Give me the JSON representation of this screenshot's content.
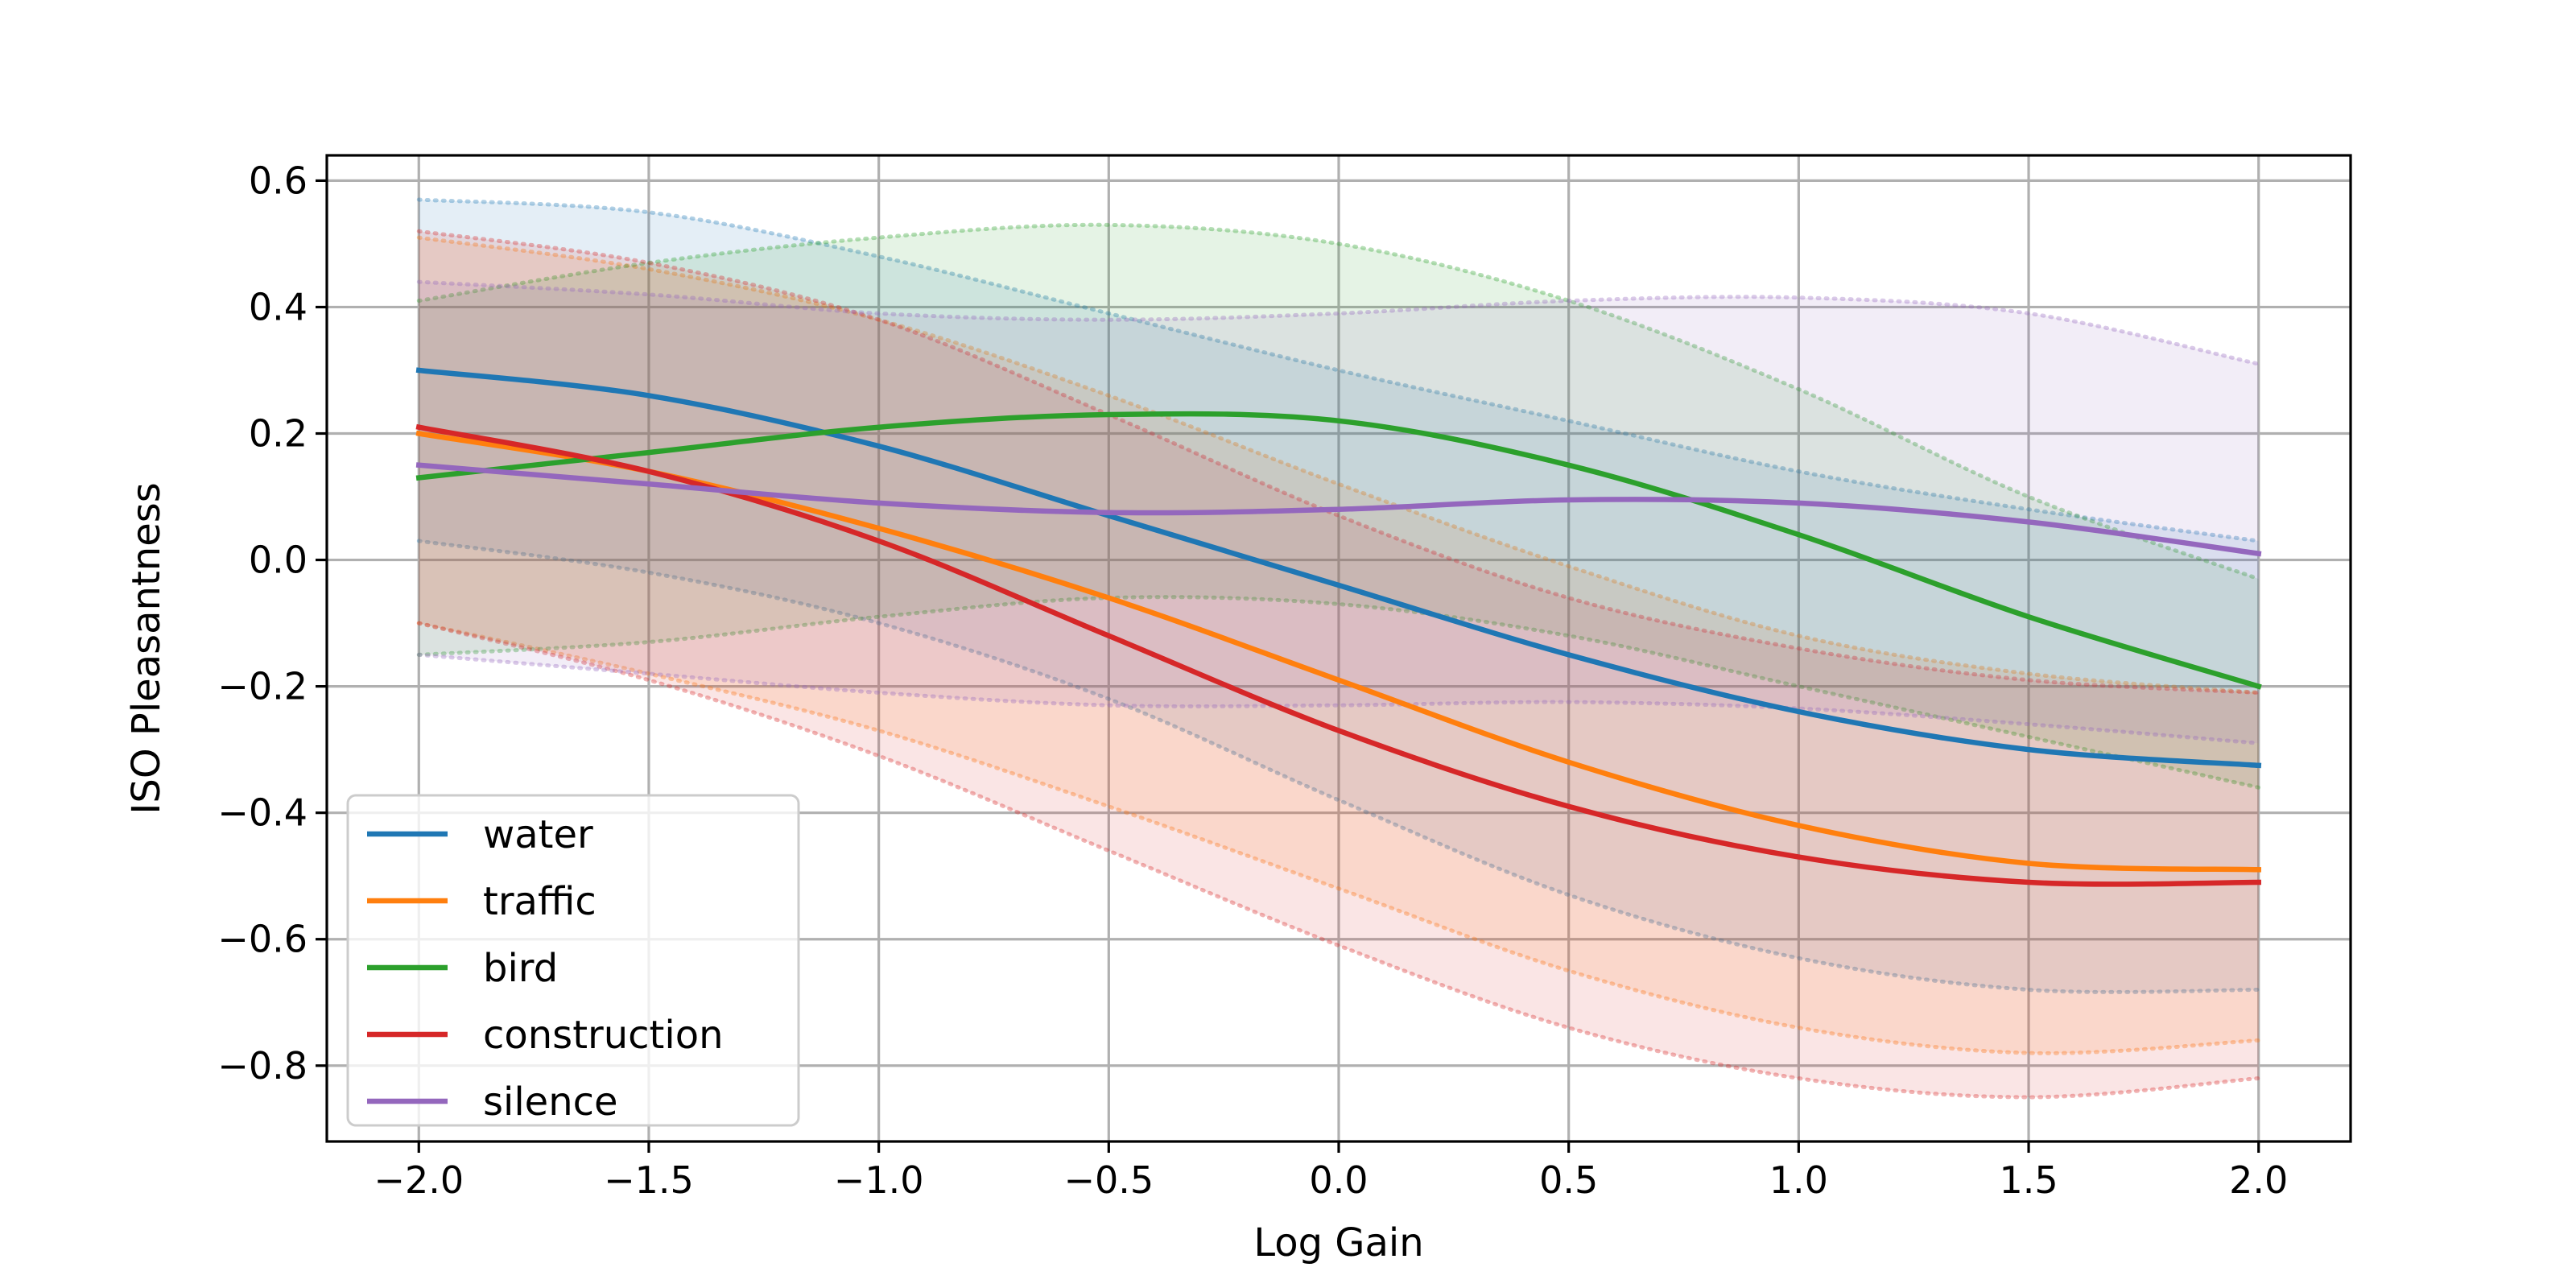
{
  "chart_data": {
    "type": "line",
    "title": "",
    "xlabel": "Log Gain",
    "ylabel": "ISO Pleasantness",
    "xlim": [
      -2.2,
      2.2
    ],
    "ylim": [
      -0.92,
      0.64
    ],
    "xticks": [
      -2.0,
      -1.5,
      -1.0,
      -0.5,
      0.0,
      0.5,
      1.0,
      1.5,
      2.0
    ],
    "xtick_labels": [
      "−2.0",
      "−1.5",
      "−1.0",
      "−0.5",
      "0.0",
      "0.5",
      "1.0",
      "1.5",
      "2.0"
    ],
    "yticks": [
      -0.8,
      -0.6,
      -0.4,
      -0.2,
      0.0,
      0.2,
      0.4,
      0.6
    ],
    "ytick_labels": [
      "−0.8",
      "−0.6",
      "−0.4",
      "−0.2",
      "0.0",
      "0.2",
      "0.4",
      "0.6"
    ],
    "grid": true,
    "legend_position": "lower-left",
    "x": [
      -2.0,
      -1.5,
      -1.0,
      -0.5,
      0.0,
      0.5,
      1.0,
      1.5,
      2.0
    ],
    "series": [
      {
        "name": "water",
        "color": "#1f77b4",
        "values": [
          0.3,
          0.26,
          0.18,
          0.07,
          -0.04,
          -0.15,
          -0.24,
          -0.3,
          -0.325
        ],
        "upper": [
          0.57,
          0.55,
          0.48,
          0.39,
          0.3,
          0.22,
          0.14,
          0.08,
          0.03
        ],
        "lower": [
          0.03,
          -0.02,
          -0.1,
          -0.22,
          -0.38,
          -0.53,
          -0.63,
          -0.68,
          -0.68
        ]
      },
      {
        "name": "traffic",
        "color": "#ff7f0e",
        "values": [
          0.2,
          0.14,
          0.05,
          -0.06,
          -0.19,
          -0.32,
          -0.42,
          -0.48,
          -0.49
        ],
        "upper": [
          0.51,
          0.46,
          0.38,
          0.26,
          0.12,
          -0.01,
          -0.12,
          -0.18,
          -0.21
        ],
        "lower": [
          -0.1,
          -0.18,
          -0.27,
          -0.39,
          -0.52,
          -0.65,
          -0.74,
          -0.78,
          -0.76
        ]
      },
      {
        "name": "bird",
        "color": "#2ca02c",
        "values": [
          0.13,
          0.17,
          0.21,
          0.23,
          0.22,
          0.15,
          0.04,
          -0.09,
          -0.2
        ],
        "upper": [
          0.41,
          0.47,
          0.51,
          0.53,
          0.5,
          0.41,
          0.27,
          0.1,
          -0.03
        ],
        "lower": [
          -0.15,
          -0.13,
          -0.09,
          -0.06,
          -0.07,
          -0.12,
          -0.2,
          -0.28,
          -0.36
        ]
      },
      {
        "name": "construction",
        "color": "#d62728",
        "values": [
          0.21,
          0.14,
          0.03,
          -0.12,
          -0.27,
          -0.39,
          -0.47,
          -0.51,
          -0.51
        ],
        "upper": [
          0.52,
          0.47,
          0.38,
          0.23,
          0.07,
          -0.06,
          -0.14,
          -0.19,
          -0.21
        ],
        "lower": [
          -0.1,
          -0.19,
          -0.31,
          -0.46,
          -0.61,
          -0.74,
          -0.82,
          -0.85,
          -0.82
        ]
      },
      {
        "name": "silence",
        "color": "#9467bd",
        "values": [
          0.15,
          0.12,
          0.09,
          0.075,
          0.08,
          0.095,
          0.09,
          0.06,
          0.01
        ],
        "upper": [
          0.44,
          0.42,
          0.39,
          0.38,
          0.39,
          0.41,
          0.415,
          0.39,
          0.31
        ],
        "lower": [
          -0.15,
          -0.18,
          -0.21,
          -0.23,
          -0.23,
          -0.225,
          -0.235,
          -0.26,
          -0.29
        ]
      }
    ]
  }
}
